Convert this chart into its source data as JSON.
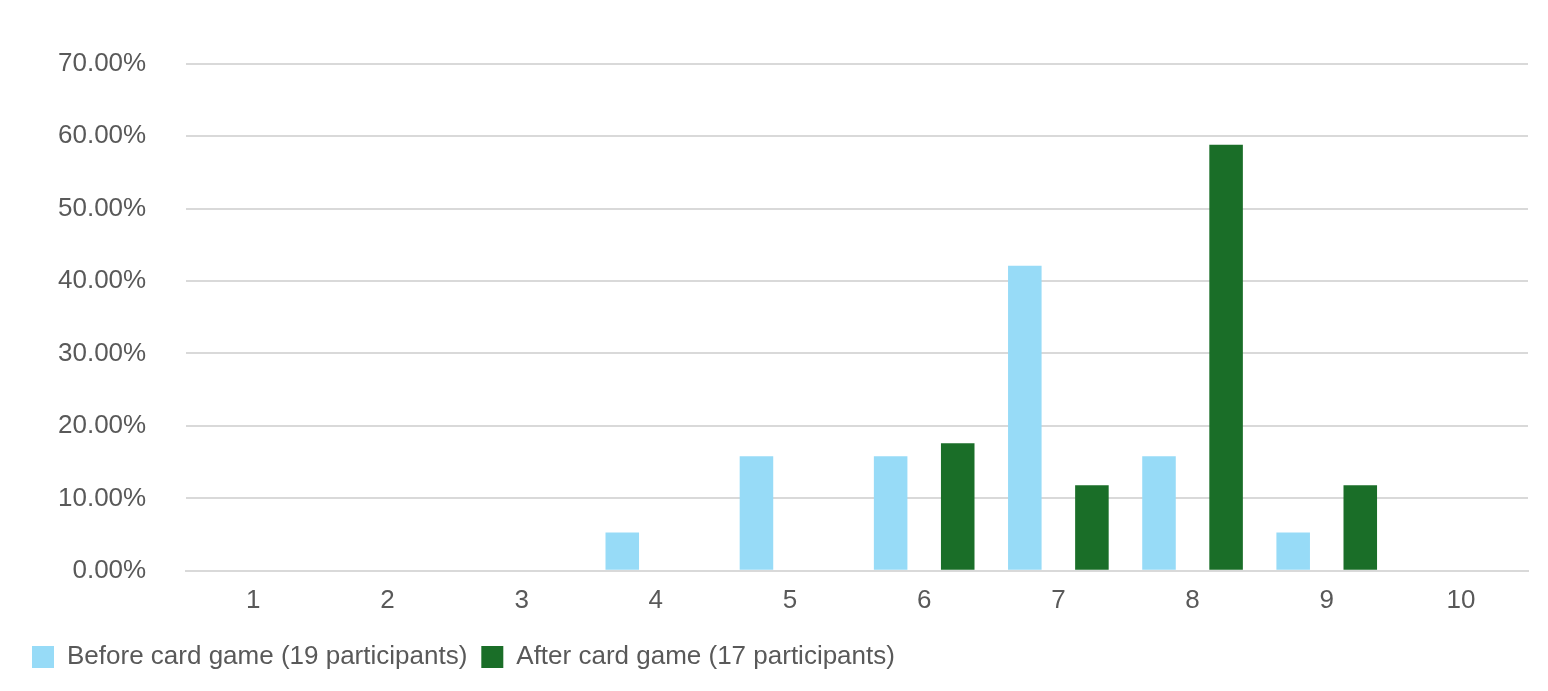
{
  "chart_data": {
    "type": "bar",
    "categories": [
      "1",
      "2",
      "3",
      "4",
      "5",
      "6",
      "7",
      "8",
      "9",
      "10"
    ],
    "series": [
      {
        "name": "Before card game (19 participants)",
        "color": "#97dbf7",
        "values": [
          0,
          0,
          0,
          5.3,
          15.8,
          15.8,
          42.1,
          15.8,
          5.3,
          0
        ]
      },
      {
        "name": "After card game (17 participants)",
        "color": "#1a6e28",
        "values": [
          0,
          0,
          0,
          0,
          0,
          17.6,
          11.8,
          58.8,
          11.8,
          0
        ]
      }
    ],
    "ylim": [
      0,
      70
    ],
    "yticks": [
      {
        "value": 0,
        "label": "0.00%"
      },
      {
        "value": 10,
        "label": "10.00%"
      },
      {
        "value": 20,
        "label": "20.00%"
      },
      {
        "value": 30,
        "label": "30.00%"
      },
      {
        "value": 40,
        "label": "40.00%"
      },
      {
        "value": 50,
        "label": "50.00%"
      },
      {
        "value": 60,
        "label": "60.00%"
      },
      {
        "value": 70,
        "label": "70.00%"
      }
    ],
    "grid": "y",
    "legend": "bottom"
  }
}
